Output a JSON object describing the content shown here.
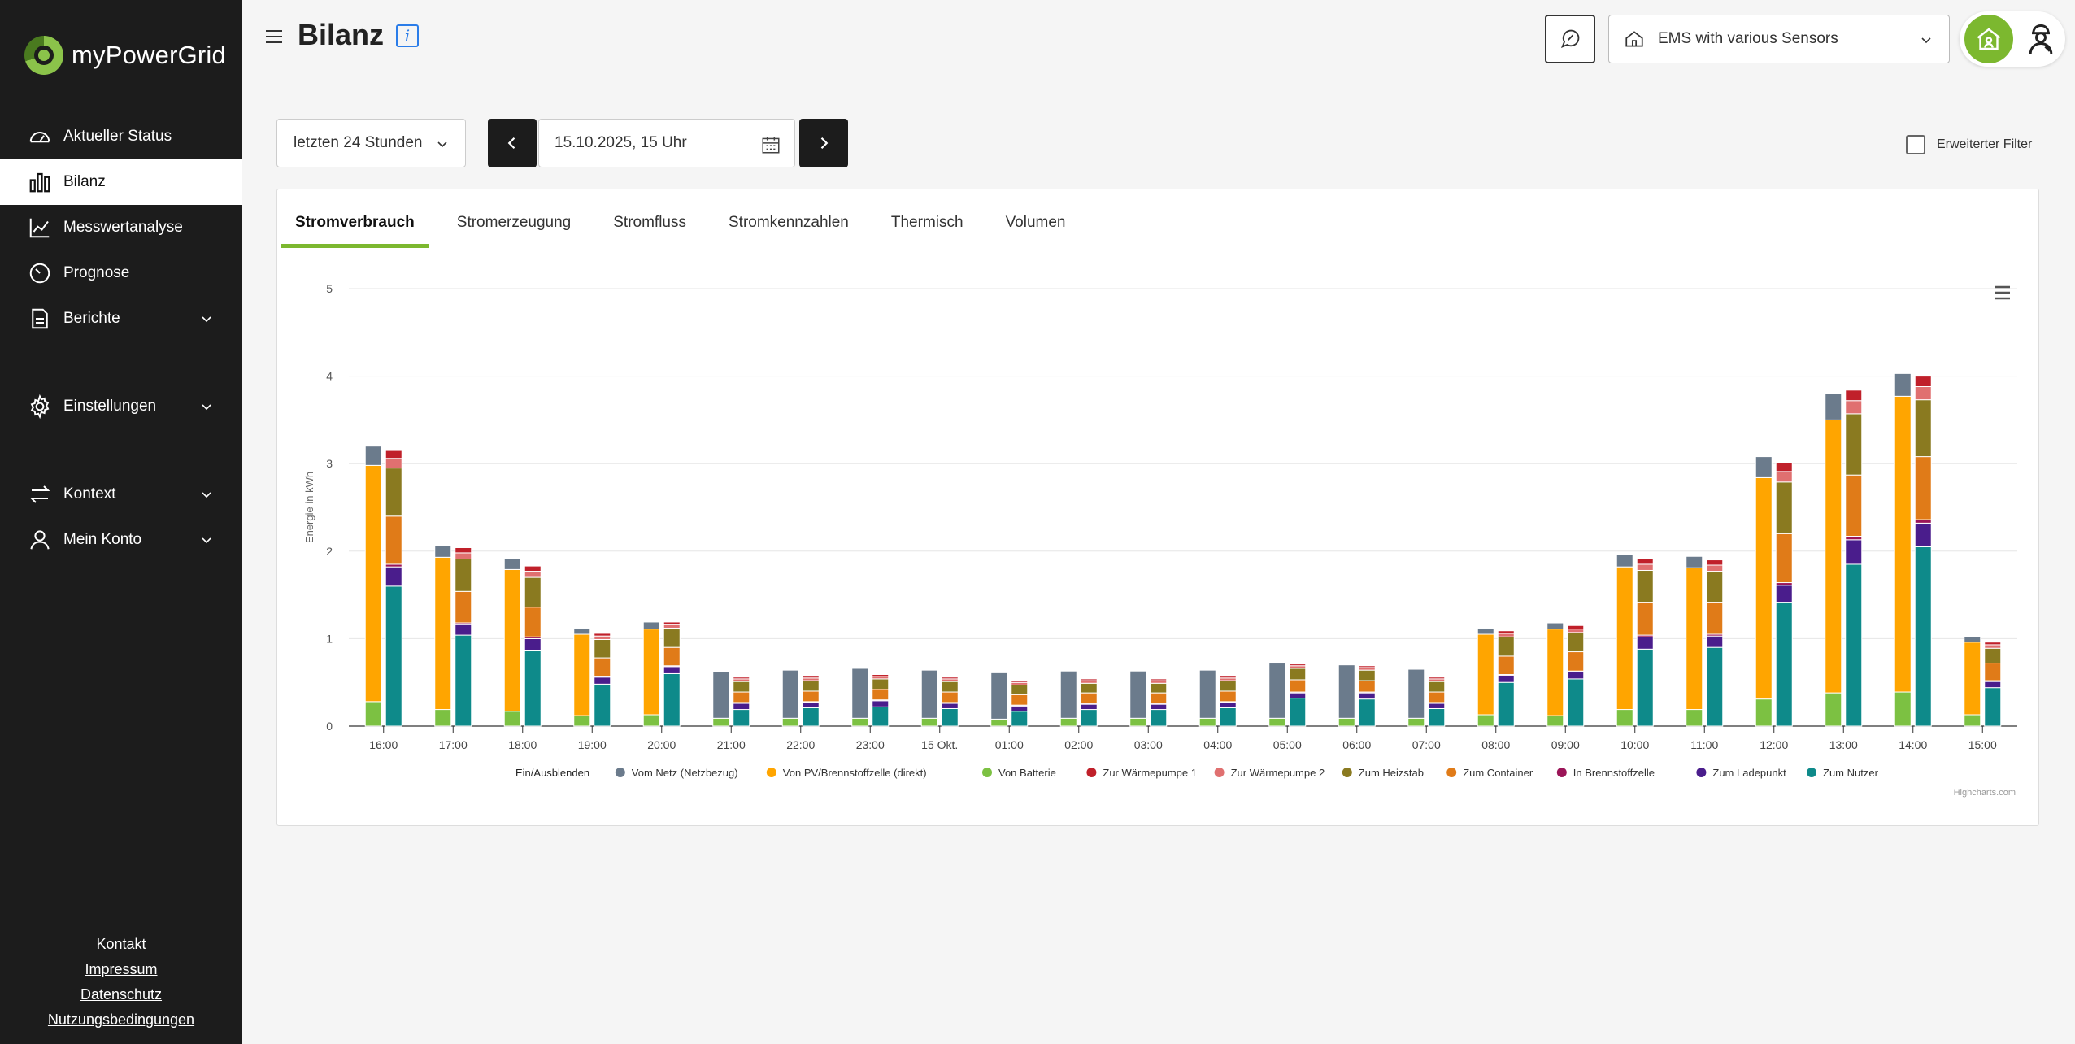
{
  "app": {
    "brand": "myPowerGrid"
  },
  "sidebar": {
    "items": [
      {
        "label": "Aktueller Status",
        "icon": "speedometer-icon"
      },
      {
        "label": "Bilanz",
        "icon": "bar-chart-icon",
        "active": true
      },
      {
        "label": "Messwertanalyse",
        "icon": "line-chart-icon"
      },
      {
        "label": "Prognose",
        "icon": "timer-icon"
      },
      {
        "label": "Berichte",
        "icon": "document-icon",
        "expandable": true
      },
      {
        "label": "Einstellungen",
        "icon": "gear-icon",
        "expandable": true
      },
      {
        "label": "Kontext",
        "icon": "swap-arrows-icon",
        "expandable": true
      },
      {
        "label": "Mein Konto",
        "icon": "user-icon",
        "expandable": true
      }
    ],
    "footer": [
      "Kontakt",
      "Impressum",
      "Datenschutz",
      "Nutzungsbedingungen"
    ]
  },
  "header": {
    "title": "Bilanz",
    "info_icon": "i",
    "site": "EMS with various Sensors"
  },
  "controls": {
    "range": "letzten 24 Stunden",
    "date": "15.10.2025, 15 Uhr",
    "advanced_filter": "Erweiterter Filter"
  },
  "tabs": [
    "Stromverbrauch",
    "Stromerzeugung",
    "Stromfluss",
    "Stromkennzahlen",
    "Thermisch",
    "Volumen"
  ],
  "active_tab": "Stromverbrauch",
  "colors": {
    "accent": "#7cb82f",
    "netz": "#6b7b8c",
    "pv": "#ffa500",
    "batterie": "#7cc142",
    "wp1": "#c0202a",
    "wp2": "#e07070",
    "heizstab": "#8a7a20",
    "container": "#e07b18",
    "brennstoffzelle": "#9b1558",
    "ladepunkt": "#4a1d8c",
    "nutzer": "#0e8a8a"
  },
  "chart_data": {
    "type": "bar",
    "ylabel": "Energie in kWh",
    "ylim": [
      0,
      5
    ],
    "yticks": [
      "0",
      "1",
      "2",
      "3",
      "4",
      "5"
    ],
    "categories": [
      "16:00",
      "17:00",
      "18:00",
      "19:00",
      "20:00",
      "21:00",
      "22:00",
      "23:00",
      "15 Okt.",
      "01:00",
      "02:00",
      "03:00",
      "04:00",
      "05:00",
      "06:00",
      "07:00",
      "08:00",
      "09:00",
      "10:00",
      "11:00",
      "12:00",
      "13:00",
      "14:00",
      "15:00"
    ],
    "legend_toggle": "Ein/Ausblenden",
    "stacks": {
      "source": [
        "Vom Netz (Netzbezug)",
        "Von PV/Brennstoffzelle (direkt)",
        "Von Batterie"
      ],
      "sink": [
        "Zur Wärmepumpe 1",
        "Zur Wärmepumpe 2",
        "Zum Heizstab",
        "Zum Container",
        "In Brennstoffzelle",
        "Zum Ladepunkt",
        "Zum Nutzer"
      ]
    },
    "series": [
      {
        "name": "Vom Netz (Netzbezug)",
        "stack": "source",
        "colorKey": "netz",
        "values": [
          0.22,
          0.13,
          0.12,
          0.07,
          0.08,
          0.53,
          0.55,
          0.57,
          0.55,
          0.53,
          0.54,
          0.54,
          0.55,
          0.63,
          0.61,
          0.56,
          0.07,
          0.07,
          0.14,
          0.13,
          0.24,
          0.3,
          0.26,
          0.06
        ]
      },
      {
        "name": "Von PV/Brennstoffzelle (direkt)",
        "stack": "source",
        "colorKey": "pv",
        "values": [
          2.7,
          1.74,
          1.62,
          0.93,
          0.98,
          0,
          0,
          0,
          0,
          0,
          0,
          0,
          0,
          0,
          0,
          0,
          0.92,
          0.99,
          1.63,
          1.62,
          2.53,
          3.12,
          3.38,
          0.83
        ]
      },
      {
        "name": "Von Batterie",
        "stack": "source",
        "colorKey": "batterie",
        "values": [
          0.28,
          0.19,
          0.17,
          0.12,
          0.13,
          0.09,
          0.09,
          0.09,
          0.09,
          0.08,
          0.09,
          0.09,
          0.09,
          0.09,
          0.09,
          0.09,
          0.13,
          0.12,
          0.19,
          0.19,
          0.31,
          0.38,
          0.39,
          0.13
        ]
      },
      {
        "name": "Zur Wärmepumpe 1",
        "stack": "sink",
        "colorKey": "wp1",
        "values": [
          0.09,
          0.06,
          0.06,
          0.03,
          0.03,
          0.02,
          0.02,
          0.02,
          0.02,
          0.02,
          0.02,
          0.02,
          0.02,
          0.02,
          0.02,
          0.02,
          0.03,
          0.04,
          0.06,
          0.06,
          0.1,
          0.12,
          0.12,
          0.03
        ]
      },
      {
        "name": "Zur Wärmepumpe 2",
        "stack": "sink",
        "colorKey": "wp2",
        "values": [
          0.11,
          0.07,
          0.07,
          0.04,
          0.04,
          0.03,
          0.03,
          0.03,
          0.03,
          0.03,
          0.03,
          0.03,
          0.03,
          0.03,
          0.03,
          0.03,
          0.04,
          0.04,
          0.07,
          0.07,
          0.12,
          0.15,
          0.15,
          0.04
        ]
      },
      {
        "name": "Zum Heizstab",
        "stack": "sink",
        "colorKey": "heizstab",
        "values": [
          0.55,
          0.37,
          0.34,
          0.21,
          0.22,
          0.12,
          0.12,
          0.12,
          0.12,
          0.11,
          0.11,
          0.11,
          0.12,
          0.13,
          0.12,
          0.12,
          0.22,
          0.22,
          0.37,
          0.36,
          0.59,
          0.7,
          0.65,
          0.17
        ]
      },
      {
        "name": "Zum Container",
        "stack": "sink",
        "colorKey": "container",
        "values": [
          0.55,
          0.36,
          0.34,
          0.21,
          0.21,
          0.12,
          0.12,
          0.12,
          0.12,
          0.12,
          0.12,
          0.12,
          0.12,
          0.14,
          0.13,
          0.12,
          0.21,
          0.22,
          0.37,
          0.36,
          0.56,
          0.7,
          0.72,
          0.2
        ]
      },
      {
        "name": "In Brennstoffzelle",
        "stack": "sink",
        "colorKey": "brennstoffzelle",
        "values": [
          0.03,
          0.02,
          0.02,
          0.01,
          0.01,
          0.01,
          0.01,
          0.01,
          0.01,
          0.01,
          0.01,
          0.01,
          0.01,
          0.01,
          0.01,
          0.01,
          0.01,
          0.01,
          0.02,
          0.02,
          0.03,
          0.04,
          0.04,
          0.01
        ]
      },
      {
        "name": "Zum Ladepunkt",
        "stack": "sink",
        "colorKey": "ladepunkt",
        "values": [
          0.22,
          0.12,
          0.14,
          0.08,
          0.08,
          0.07,
          0.06,
          0.07,
          0.06,
          0.06,
          0.06,
          0.06,
          0.06,
          0.06,
          0.07,
          0.06,
          0.08,
          0.08,
          0.14,
          0.13,
          0.2,
          0.28,
          0.27,
          0.07
        ]
      },
      {
        "name": "Zum Nutzer",
        "stack": "sink",
        "colorKey": "nutzer",
        "values": [
          1.6,
          1.04,
          0.86,
          0.48,
          0.6,
          0.19,
          0.21,
          0.22,
          0.2,
          0.17,
          0.19,
          0.19,
          0.21,
          0.32,
          0.31,
          0.2,
          0.5,
          0.54,
          0.88,
          0.9,
          1.41,
          1.85,
          2.05,
          0.44
        ]
      }
    ]
  },
  "credits": "Highcharts.com"
}
